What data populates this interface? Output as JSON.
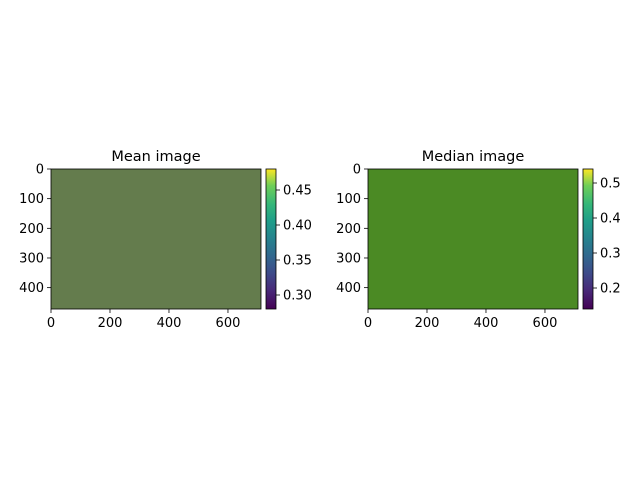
{
  "chart_data": [
    {
      "type": "heatmap",
      "title": "Mean image",
      "fill_color": "#647c4d",
      "x_ticks": [
        0,
        200,
        400,
        600
      ],
      "y_ticks": [
        0,
        100,
        200,
        300,
        400
      ],
      "xlim": [
        0,
        712
      ],
      "ylim": [
        472,
        0
      ],
      "colorbar": {
        "ticks": [
          "0.30",
          "0.35",
          "0.40",
          "0.45"
        ],
        "range": [
          0.28,
          0.48
        ],
        "colormap": "viridis"
      }
    },
    {
      "type": "heatmap",
      "title": "Median image",
      "fill_color": "#4b8a24",
      "x_ticks": [
        0,
        200,
        400,
        600
      ],
      "y_ticks": [
        0,
        100,
        200,
        300,
        400
      ],
      "xlim": [
        0,
        712
      ],
      "ylim": [
        472,
        0
      ],
      "colorbar": {
        "ticks": [
          "0.2",
          "0.3",
          "0.4",
          "0.5"
        ],
        "range": [
          0.14,
          0.54
        ],
        "colormap": "viridis"
      }
    }
  ]
}
